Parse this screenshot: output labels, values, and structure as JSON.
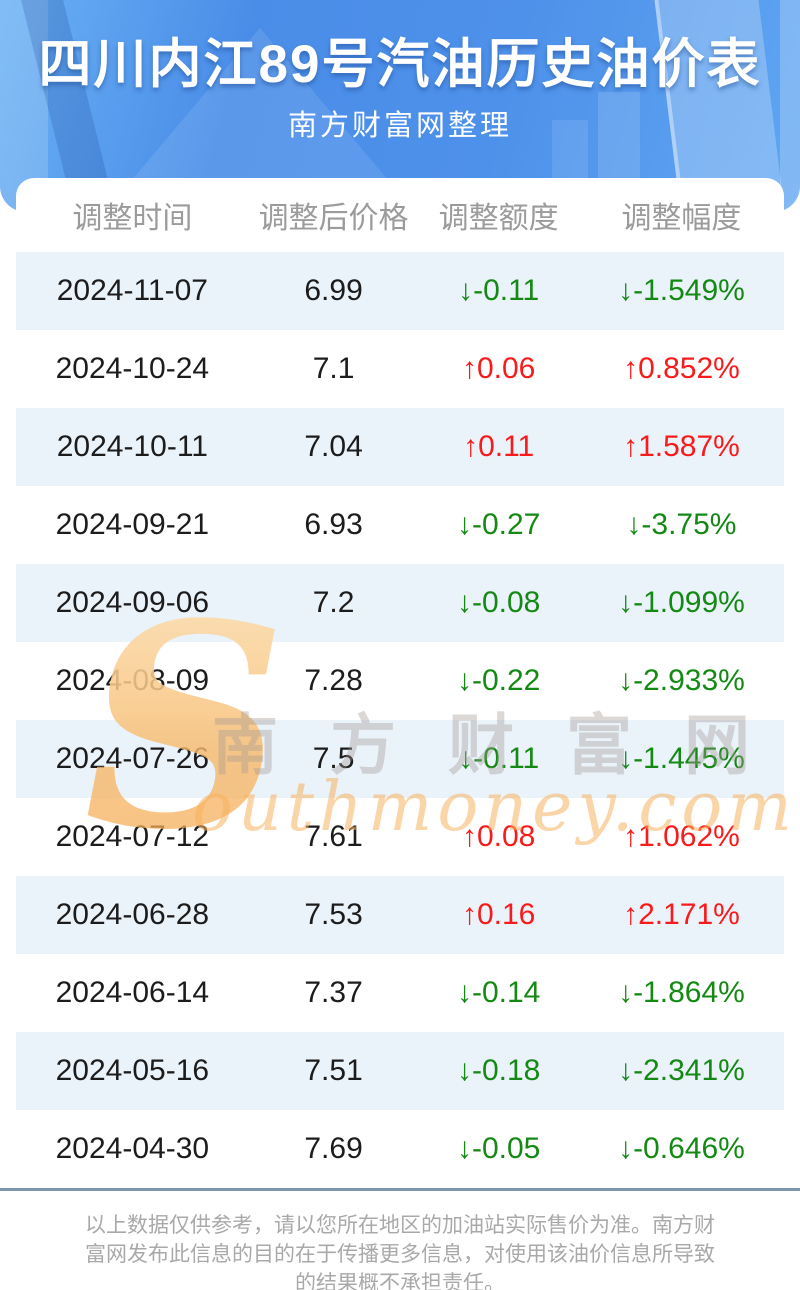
{
  "header": {
    "title": "四川内江89号汽油历史油价表",
    "subtitle": "南方财富网整理"
  },
  "table": {
    "columns": [
      "调整时间",
      "调整后价格",
      "调整额度",
      "调整幅度"
    ],
    "rows": [
      {
        "date": "2024-11-07",
        "price": "6.99",
        "change": "↓-0.11",
        "pct": "↓-1.549%",
        "dir": "down"
      },
      {
        "date": "2024-10-24",
        "price": "7.1",
        "change": "↑0.06",
        "pct": "↑0.852%",
        "dir": "up"
      },
      {
        "date": "2024-10-11",
        "price": "7.04",
        "change": "↑0.11",
        "pct": "↑1.587%",
        "dir": "up"
      },
      {
        "date": "2024-09-21",
        "price": "6.93",
        "change": "↓-0.27",
        "pct": "↓-3.75%",
        "dir": "down"
      },
      {
        "date": "2024-09-06",
        "price": "7.2",
        "change": "↓-0.08",
        "pct": "↓-1.099%",
        "dir": "down"
      },
      {
        "date": "2024-08-09",
        "price": "7.28",
        "change": "↓-0.22",
        "pct": "↓-2.933%",
        "dir": "down"
      },
      {
        "date": "2024-07-26",
        "price": "7.5",
        "change": "↓-0.11",
        "pct": "↓-1.445%",
        "dir": "down"
      },
      {
        "date": "2024-07-12",
        "price": "7.61",
        "change": "↑0.08",
        "pct": "↑1.062%",
        "dir": "up"
      },
      {
        "date": "2024-06-28",
        "price": "7.53",
        "change": "↑0.16",
        "pct": "↑2.171%",
        "dir": "up"
      },
      {
        "date": "2024-06-14",
        "price": "7.37",
        "change": "↓-0.14",
        "pct": "↓-1.864%",
        "dir": "down"
      },
      {
        "date": "2024-05-16",
        "price": "7.51",
        "change": "↓-0.18",
        "pct": "↓-2.341%",
        "dir": "down"
      },
      {
        "date": "2024-04-30",
        "price": "7.69",
        "change": "↓-0.05",
        "pct": "↓-0.646%",
        "dir": "down"
      }
    ]
  },
  "watermark": {
    "initial": "S",
    "cn": "南方财富网",
    "en": "outhmoney.com"
  },
  "footer": {
    "lines": [
      "以上数据仅供参考，请以您所在地区的加油站实际售价为准。南方财",
      "富网发布此信息的目的在于传播更多信息，对使用该油价信息所导致",
      "的结果概不承担责任。"
    ]
  },
  "colors": {
    "banner_blue": "#4a8de8",
    "row_alt_blue": "#eaf2fa",
    "up_red": "#f91b1b",
    "down_green": "#148a14",
    "separator_gray_blue": "#8096ab",
    "column_header_gray": "#9b9b9b",
    "footer_gray": "#a9a9a9",
    "watermark_orange": "#f6a625"
  },
  "chart_data": {
    "type": "table",
    "title": "四川内江89号汽油历史油价表",
    "subtitle": "南方财富网整理",
    "columns": [
      "调整时间",
      "调整后价格",
      "调整额度",
      "调整幅度"
    ],
    "rows": [
      [
        "2024-11-07",
        6.99,
        -0.11,
        "-1.549%"
      ],
      [
        "2024-10-24",
        7.1,
        0.06,
        "0.852%"
      ],
      [
        "2024-10-11",
        7.04,
        0.11,
        "1.587%"
      ],
      [
        "2024-09-21",
        6.93,
        -0.27,
        "-3.75%"
      ],
      [
        "2024-09-06",
        7.2,
        -0.08,
        "-1.099%"
      ],
      [
        "2024-08-09",
        7.28,
        -0.22,
        "-2.933%"
      ],
      [
        "2024-07-26",
        7.5,
        -0.11,
        "-1.445%"
      ],
      [
        "2024-07-12",
        7.61,
        0.08,
        "1.062%"
      ],
      [
        "2024-06-28",
        7.53,
        0.16,
        "2.171%"
      ],
      [
        "2024-06-14",
        7.37,
        -0.14,
        "-1.864%"
      ],
      [
        "2024-05-16",
        7.51,
        -0.18,
        "-2.341%"
      ],
      [
        "2024-04-30",
        7.69,
        -0.05,
        "-0.646%"
      ]
    ],
    "legend_note": "red arrows = price increase, green arrows = price decrease"
  }
}
